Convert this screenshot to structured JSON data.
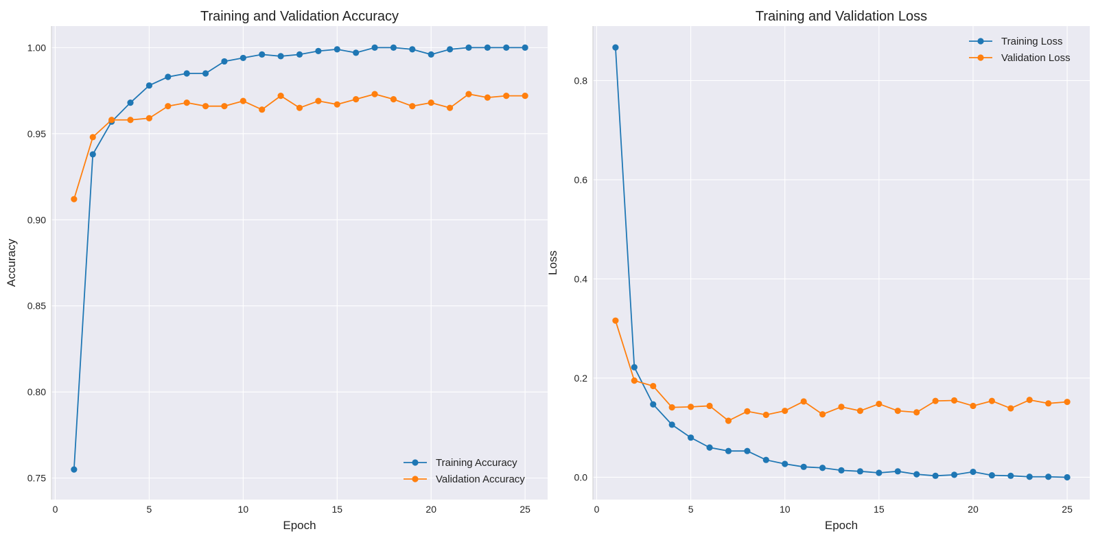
{
  "chart_data": [
    {
      "type": "line",
      "title": "Training and Validation Accuracy",
      "xlabel": "Epoch",
      "ylabel": "Accuracy",
      "xlim": [
        -0.2,
        26.2
      ],
      "ylim": [
        0.7375,
        1.0125
      ],
      "xticks": [
        0,
        5,
        10,
        15,
        20,
        25
      ],
      "yticks": [
        0.75,
        0.8,
        0.85,
        0.9,
        0.95,
        1.0
      ],
      "ytick_labels": [
        "0.75",
        "0.80",
        "0.85",
        "0.90",
        "0.95",
        "1.00"
      ],
      "grid": true,
      "legend_position": "lower-right",
      "x": [
        1,
        2,
        3,
        4,
        5,
        6,
        7,
        8,
        9,
        10,
        11,
        12,
        13,
        14,
        15,
        16,
        17,
        18,
        19,
        20,
        21,
        22,
        23,
        24,
        25
      ],
      "series": [
        {
          "name": "Training Accuracy",
          "color": "#1f77b4",
          "values": [
            0.755,
            0.938,
            0.957,
            0.968,
            0.978,
            0.983,
            0.985,
            0.985,
            0.992,
            0.994,
            0.996,
            0.995,
            0.996,
            0.998,
            0.999,
            0.997,
            1.0,
            1.0,
            0.999,
            0.996,
            0.999,
            1.0,
            1.0,
            1.0,
            1.0
          ]
        },
        {
          "name": "Validation Accuracy",
          "color": "#ff7f0e",
          "values": [
            0.912,
            0.948,
            0.958,
            0.958,
            0.959,
            0.966,
            0.968,
            0.966,
            0.966,
            0.969,
            0.964,
            0.972,
            0.965,
            0.969,
            0.967,
            0.97,
            0.973,
            0.97,
            0.966,
            0.968,
            0.965,
            0.973,
            0.971,
            0.972,
            0.972
          ]
        }
      ]
    },
    {
      "type": "line",
      "title": "Training and Validation Loss",
      "xlabel": "Epoch",
      "ylabel": "Loss",
      "xlim": [
        -0.2,
        26.2
      ],
      "ylim": [
        -0.045,
        0.91
      ],
      "xticks": [
        0,
        5,
        10,
        15,
        20,
        25
      ],
      "yticks": [
        0.0,
        0.2,
        0.4,
        0.6,
        0.8
      ],
      "ytick_labels": [
        "0.0",
        "0.2",
        "0.4",
        "0.6",
        "0.8"
      ],
      "grid": true,
      "legend_position": "upper-right",
      "x": [
        1,
        2,
        3,
        4,
        5,
        6,
        7,
        8,
        9,
        10,
        11,
        12,
        13,
        14,
        15,
        16,
        17,
        18,
        19,
        20,
        21,
        22,
        23,
        24,
        25
      ],
      "series": [
        {
          "name": "Training Loss",
          "color": "#1f77b4",
          "values": [
            0.867,
            0.222,
            0.147,
            0.106,
            0.08,
            0.06,
            0.053,
            0.053,
            0.035,
            0.027,
            0.021,
            0.019,
            0.014,
            0.012,
            0.009,
            0.012,
            0.006,
            0.003,
            0.005,
            0.011,
            0.004,
            0.003,
            0.001,
            0.001,
            0.0
          ]
        },
        {
          "name": "Validation Loss",
          "color": "#ff7f0e",
          "values": [
            0.316,
            0.195,
            0.184,
            0.141,
            0.142,
            0.144,
            0.114,
            0.133,
            0.126,
            0.134,
            0.153,
            0.127,
            0.142,
            0.134,
            0.148,
            0.134,
            0.131,
            0.154,
            0.155,
            0.144,
            0.154,
            0.139,
            0.156,
            0.149,
            0.152
          ]
        }
      ]
    }
  ]
}
